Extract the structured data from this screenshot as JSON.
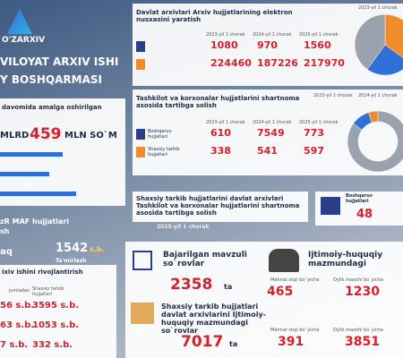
{
  "header": {
    "logo": "O'ZARXIV",
    "title_1": "VILOYAT ARXIV ISHI",
    "title_2": "Y BOSHQARMASI"
  },
  "funding": {
    "caption": "davomida amalga oshirilgan",
    "prefix": "MLRD",
    "amount": "459",
    "unit": "MLN SO`M"
  },
  "maf": {
    "title_1": "zR MAF hujjatlari",
    "title_2": "sh",
    "left": "aq",
    "value": "1542",
    "unit": "s.b.",
    "caption": "Ta'mirlash"
  },
  "development": {
    "title": "ixiv ishini rivojlantirish",
    "col_1": "jumladan",
    "col_2": "Shaxsiy tarkib hujjatlari",
    "rows": [
      [
        "56 s.b.",
        "3595 s.b."
      ],
      [
        "63 s.b.",
        "1053 s.b."
      ],
      [
        "7 s.b.",
        "332 s.b."
      ]
    ]
  },
  "digitization": {
    "title": "Davlat arxivlari Arxiv hujjatlarining elektron nusxasini yaratish",
    "columns": [
      "2023-yil 1 chorak",
      "2024-yil 1 chorak",
      "2025-yil 1 chorak"
    ],
    "rows": [
      [
        1080,
        970,
        1560
      ],
      [
        224460,
        187226,
        217970
      ]
    ],
    "pie": {
      "legend": "2023-yil 1 chorak",
      "values": [
        35,
        25,
        40
      ],
      "colors": [
        "#f28c28",
        "#2f6fd6",
        "#9aa3ad"
      ]
    }
  },
  "contracts": {
    "title": "Tashkilot va korxonalar hujjatlarini shartnoma asosida tartibga solish",
    "columns": [
      "2023-yil 1 chorak",
      "2024-yil 1 chorak",
      "2025-yil 1 chorak"
    ],
    "row_labels": [
      "Boshqaruv hujjatlari",
      "Shaxsiy tarkib hujjatlari"
    ],
    "rows": [
      [
        610,
        7549,
        773
      ],
      [
        338,
        541,
        597
      ]
    ],
    "pie": {
      "legend": [
        "2023-yil 1 chorak",
        "2024-yil 1 chorak"
      ],
      "values": [
        85,
        10,
        5
      ],
      "colors": [
        "#9aa3ad",
        "#2f6fd6",
        "#f28c28"
      ]
    }
  },
  "personnel": {
    "title": "Shaxsiy tarkib hujjatlarini davlat arxivlari Tashkilot va korxonalar hujjatlarini shartnoma asosida tartibga solish",
    "period": "2025-yil 1 chorak",
    "label": "Boshqaruv hujjatlari",
    "value": 48
  },
  "requests": {
    "title": "Bajarilgan mavzuli so`rovlar",
    "value": 2358,
    "unit": "ta"
  },
  "social": {
    "title": "Ijtimoiy-huquqiy mazmundagi",
    "labels": [
      "Mehnat staji bo`yicha",
      "Oylik maoshi bo`yicha"
    ],
    "values": [
      465,
      1230
    ]
  },
  "social_archive": {
    "title": "Shaxsiy tarkib hujjatlari davlat arxivlarini Ijtimoiy-huquqiy mazmundagi so`rovlar",
    "value": 7017,
    "unit": "ta",
    "labels": [
      "Mehnat staji bo`yicha",
      "Oylik maoshi bo`yicha"
    ],
    "values": [
      391,
      3851
    ]
  }
}
